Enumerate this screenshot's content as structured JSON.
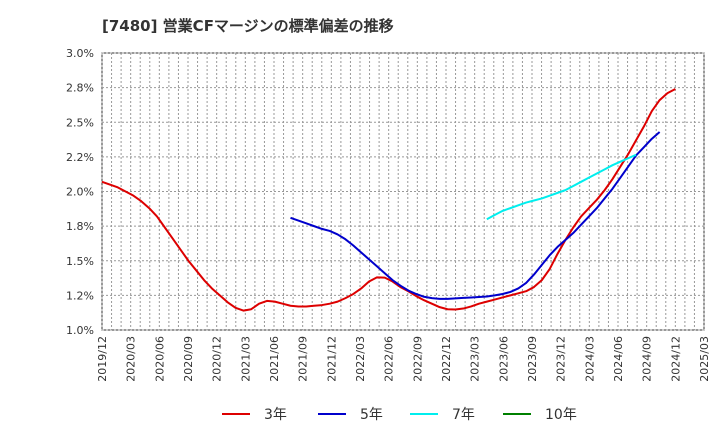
{
  "chart_data": {
    "type": "line",
    "title": "[7480]  営業CFマージンの標準偏差の推移",
    "xlabel": "",
    "ylabel": "",
    "ylim": [
      1.0,
      3.0
    ],
    "yticks": [
      "1.0%",
      "1.2%",
      "1.5%",
      "1.8%",
      "2.0%",
      "2.2%",
      "2.5%",
      "2.8%",
      "3.0%"
    ],
    "yticks_values": [
      1.0,
      1.25,
      1.5,
      1.75,
      2.0,
      2.25,
      2.5,
      2.75,
      3.0
    ],
    "xticks": [
      "2019/12",
      "2020/03",
      "2020/06",
      "2020/09",
      "2020/12",
      "2021/03",
      "2021/06",
      "2021/09",
      "2021/12",
      "2022/03",
      "2022/06",
      "2022/09",
      "2022/12",
      "2023/03",
      "2023/06",
      "2023/09",
      "2023/12",
      "2024/03",
      "2024/06",
      "2024/09",
      "2024/12",
      "2025/03"
    ],
    "xrange_months": [
      0,
      63
    ],
    "grid": true,
    "legend_position": "bottom",
    "series": [
      {
        "name": "3年",
        "color": "#dd0000",
        "points": [
          [
            0,
            2.07
          ],
          [
            1,
            2.05
          ],
          [
            2,
            2.03
          ],
          [
            3,
            2.0
          ],
          [
            4,
            1.97
          ],
          [
            5,
            1.93
          ],
          [
            6,
            1.88
          ],
          [
            7,
            1.82
          ],
          [
            8,
            1.74
          ],
          [
            9,
            1.66
          ],
          [
            10,
            1.58
          ],
          [
            11,
            1.5
          ],
          [
            12,
            1.43
          ],
          [
            13,
            1.36
          ],
          [
            14,
            1.3
          ],
          [
            15,
            1.25
          ],
          [
            16,
            1.2
          ],
          [
            17,
            1.16
          ],
          [
            18,
            1.14
          ],
          [
            19,
            1.15
          ],
          [
            20,
            1.19
          ],
          [
            21,
            1.21
          ],
          [
            22,
            1.205
          ],
          [
            23,
            1.19
          ],
          [
            24,
            1.175
          ],
          [
            25,
            1.17
          ],
          [
            26,
            1.17
          ],
          [
            27,
            1.175
          ],
          [
            28,
            1.18
          ],
          [
            29,
            1.19
          ],
          [
            30,
            1.205
          ],
          [
            31,
            1.23
          ],
          [
            32,
            1.26
          ],
          [
            33,
            1.3
          ],
          [
            34,
            1.35
          ],
          [
            35,
            1.38
          ],
          [
            36,
            1.378
          ],
          [
            37,
            1.35
          ],
          [
            38,
            1.31
          ],
          [
            39,
            1.28
          ],
          [
            40,
            1.245
          ],
          [
            41,
            1.215
          ],
          [
            42,
            1.19
          ],
          [
            43,
            1.165
          ],
          [
            44,
            1.15
          ],
          [
            45,
            1.148
          ],
          [
            46,
            1.155
          ],
          [
            47,
            1.17
          ],
          [
            48,
            1.19
          ],
          [
            49,
            1.205
          ],
          [
            50,
            1.22
          ],
          [
            51,
            1.235
          ],
          [
            52,
            1.25
          ],
          [
            53,
            1.265
          ],
          [
            54,
            1.28
          ],
          [
            55,
            1.31
          ],
          [
            56,
            1.36
          ],
          [
            57,
            1.44
          ],
          [
            58,
            1.55
          ],
          [
            59,
            1.65
          ],
          [
            60,
            1.74
          ],
          [
            61,
            1.82
          ],
          [
            62,
            1.88
          ],
          [
            63,
            1.94
          ],
          [
            64,
            2.01
          ],
          [
            65,
            2.09
          ],
          [
            66,
            2.18
          ],
          [
            67,
            2.27
          ],
          [
            68,
            2.37
          ],
          [
            69,
            2.47
          ],
          [
            70,
            2.58
          ],
          [
            71,
            2.66
          ],
          [
            72,
            2.71
          ],
          [
            73,
            2.74
          ]
        ]
      },
      {
        "name": "5年",
        "color": "#0000cc",
        "points": [
          [
            24,
            1.81
          ],
          [
            25,
            1.79
          ],
          [
            26,
            1.77
          ],
          [
            27,
            1.75
          ],
          [
            28,
            1.73
          ],
          [
            29,
            1.715
          ],
          [
            30,
            1.69
          ],
          [
            31,
            1.655
          ],
          [
            32,
            1.61
          ],
          [
            33,
            1.56
          ],
          [
            34,
            1.51
          ],
          [
            35,
            1.46
          ],
          [
            36,
            1.41
          ],
          [
            37,
            1.36
          ],
          [
            38,
            1.32
          ],
          [
            39,
            1.285
          ],
          [
            40,
            1.26
          ],
          [
            41,
            1.24
          ],
          [
            42,
            1.23
          ],
          [
            43,
            1.225
          ],
          [
            44,
            1.225
          ],
          [
            45,
            1.228
          ],
          [
            46,
            1.232
          ],
          [
            47,
            1.235
          ],
          [
            48,
            1.238
          ],
          [
            49,
            1.242
          ],
          [
            50,
            1.25
          ],
          [
            51,
            1.26
          ],
          [
            52,
            1.275
          ],
          [
            53,
            1.3
          ],
          [
            54,
            1.34
          ],
          [
            55,
            1.4
          ],
          [
            56,
            1.47
          ],
          [
            57,
            1.54
          ],
          [
            58,
            1.6
          ],
          [
            59,
            1.65
          ],
          [
            60,
            1.7
          ],
          [
            61,
            1.76
          ],
          [
            62,
            1.82
          ],
          [
            63,
            1.88
          ],
          [
            64,
            1.95
          ],
          [
            65,
            2.02
          ],
          [
            66,
            2.1
          ],
          [
            67,
            2.18
          ],
          [
            68,
            2.26
          ],
          [
            69,
            2.32
          ],
          [
            70,
            2.38
          ],
          [
            71,
            2.43
          ]
        ]
      },
      {
        "name": "7年",
        "color": "#00eeee",
        "points": [
          [
            49,
            1.8
          ],
          [
            50,
            1.83
          ],
          [
            51,
            1.86
          ],
          [
            52,
            1.88
          ],
          [
            53,
            1.9
          ],
          [
            54,
            1.92
          ],
          [
            55,
            1.935
          ],
          [
            56,
            1.95
          ],
          [
            57,
            1.97
          ],
          [
            58,
            1.99
          ],
          [
            59,
            2.01
          ],
          [
            60,
            2.04
          ],
          [
            61,
            2.07
          ],
          [
            62,
            2.1
          ],
          [
            63,
            2.13
          ],
          [
            64,
            2.16
          ],
          [
            65,
            2.19
          ],
          [
            66,
            2.215
          ],
          [
            67,
            2.24
          ],
          [
            68,
            2.265
          ]
        ]
      },
      {
        "name": "10年",
        "color": "#008000",
        "points": []
      }
    ]
  }
}
